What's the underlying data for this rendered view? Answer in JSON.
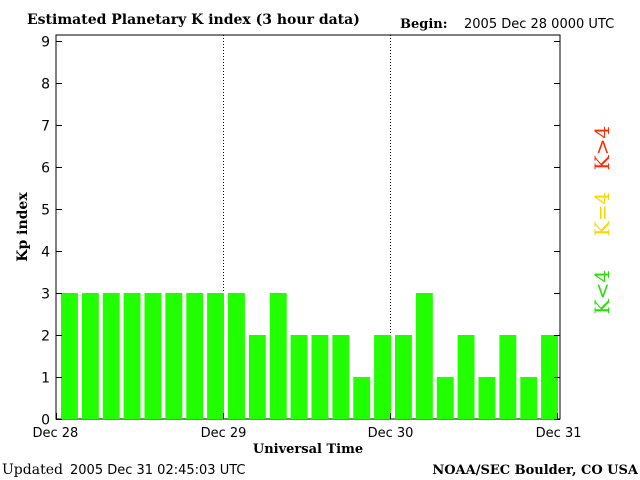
{
  "header": {
    "title": "Estimated Planetary K index (3 hour data)",
    "begin_label": "Begin:",
    "begin_value": "2005 Dec 28 0000 UTC"
  },
  "footer": {
    "updated_label": "Updated",
    "updated_value": "2005 Dec 31 02:45:03 UTC",
    "source": "NOAA/SEC Boulder, CO USA"
  },
  "legend": [
    {
      "label": "K>4",
      "color": "#ff2a00"
    },
    {
      "label": "K=4",
      "color": "#ffd400"
    },
    {
      "label": "K<4",
      "color": "#22e000"
    }
  ],
  "chart_data": {
    "type": "bar",
    "title": "Estimated Planetary K index (3 hour data)",
    "xlabel": "Universal Time",
    "ylabel": "Kp index",
    "ylim": [
      0,
      9
    ],
    "yticks": [
      0,
      1,
      2,
      3,
      4,
      5,
      6,
      7,
      8,
      9
    ],
    "xlim": [
      0,
      72
    ],
    "xticks": [
      {
        "label": "Dec 28",
        "hours": 0
      },
      {
        "label": "Dec 29",
        "hours": 24
      },
      {
        "label": "Dec 30",
        "hours": 48
      },
      {
        "label": "Dec 31",
        "hours": 72
      }
    ],
    "day_dividers_hours": [
      24,
      48
    ],
    "bar_color": "#22ff00",
    "values": [
      3,
      3,
      3,
      3,
      3,
      3,
      3,
      3,
      3,
      2,
      3,
      2,
      2,
      2,
      1,
      2,
      2,
      3,
      1,
      2,
      1,
      2,
      1,
      2
    ]
  }
}
